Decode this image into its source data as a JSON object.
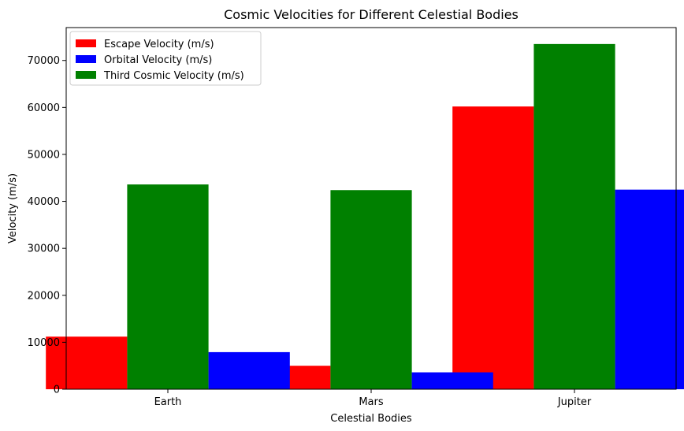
{
  "chart_data": {
    "type": "bar",
    "title": "Cosmic Velocities for Different Celestial Bodies",
    "xlabel": "Celestial Bodies",
    "ylabel": "Velocity (m/s)",
    "categories": [
      "Earth",
      "Mars",
      "Jupiter"
    ],
    "ylim": [
      0,
      77000
    ],
    "yticks": [
      0,
      10000,
      20000,
      30000,
      40000,
      50000,
      60000,
      70000
    ],
    "ytick_labels": [
      "0",
      "10000",
      "20000",
      "30000",
      "40000",
      "50000",
      "60000",
      "70000"
    ],
    "legend_position": "upper-left",
    "grid": false,
    "series": [
      {
        "name": "Escape Velocity (m/s)",
        "color": "#ff0000",
        "values": [
          11200,
          5000,
          60200
        ]
      },
      {
        "name": "Orbital Velocity (m/s)",
        "color": "#0000ff",
        "values": [
          7900,
          3600,
          42500
        ]
      },
      {
        "name": "Third Cosmic Velocity (m/s)",
        "color": "#008000",
        "values": [
          43600,
          42400,
          73500
        ]
      }
    ]
  }
}
